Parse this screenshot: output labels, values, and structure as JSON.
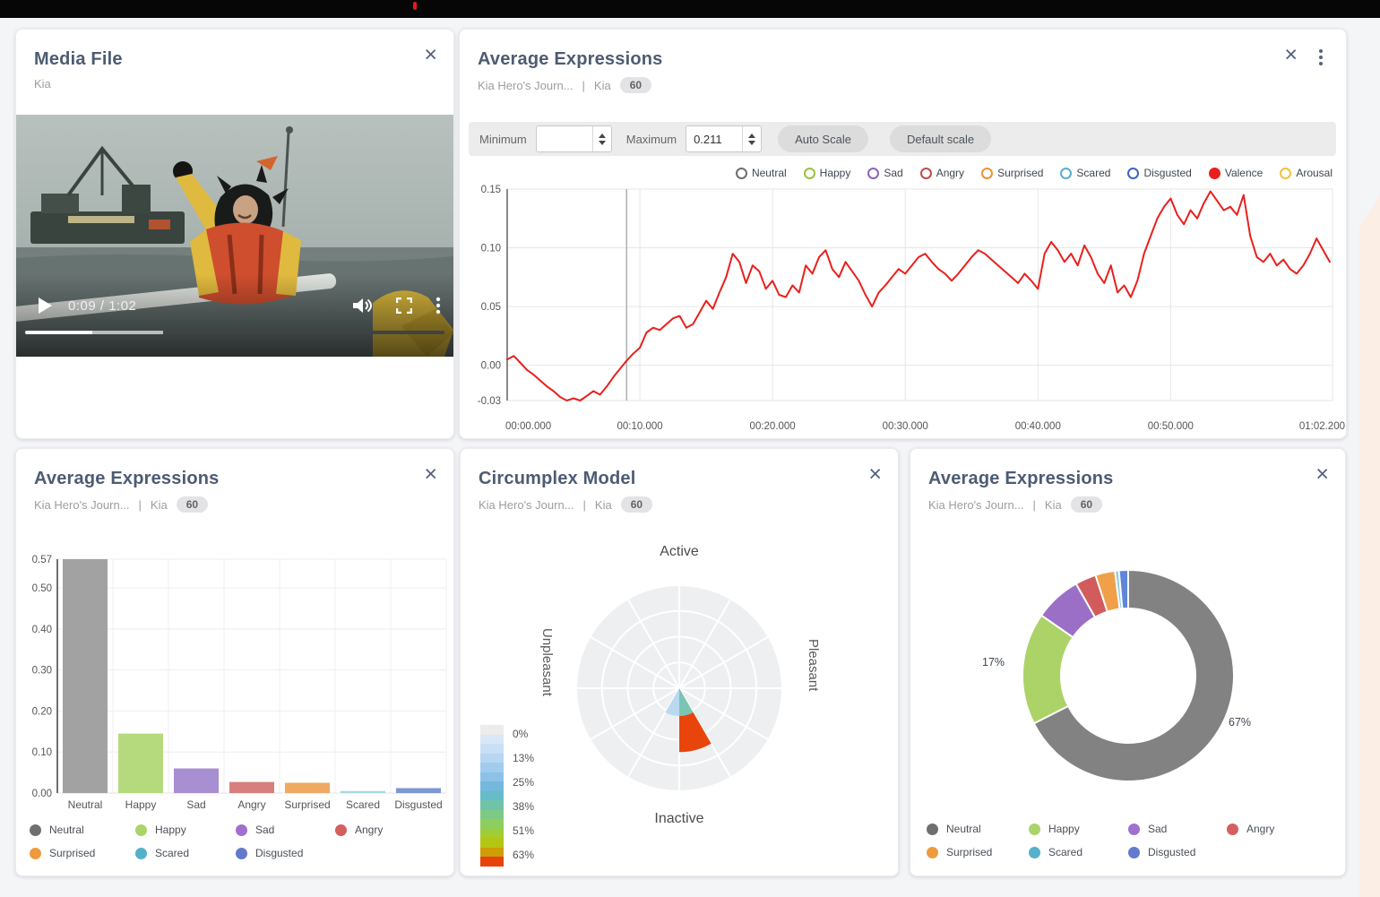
{
  "media_panel": {
    "title": "Media File",
    "subtitle": "Kia",
    "close_icon": "×",
    "player": {
      "time": "0:09 / 1:02",
      "progress_pct": 16,
      "buffer_pct": 33,
      "progress_color": "#ffffff",
      "buffer_color": "#b9bdbc",
      "track_color": "#3f4443"
    }
  },
  "line_panel": {
    "title": "Average Expressions",
    "source": "Kia Hero's Journ...",
    "separator": "|",
    "dataset": "Kia",
    "badge": "60",
    "close_icon": "×",
    "controls": {
      "min_label": "Minimum",
      "min_value": "",
      "max_label": "Maximum",
      "max_value": "0.211",
      "auto_btn": "Auto Scale",
      "default_btn": "Default scale"
    }
  },
  "bar_panel": {
    "title": "Average Expressions",
    "source": "Kia Hero's Journ...",
    "separator": "|",
    "dataset": "Kia",
    "badge": "60",
    "close_icon": "×"
  },
  "circumplex_panel": {
    "title": "Circumplex Model",
    "source": "Kia Hero's Journ...",
    "separator": "|",
    "dataset": "Kia",
    "badge": "60",
    "close_icon": "×"
  },
  "donut_panel": {
    "title": "Average Expressions",
    "source": "Kia Hero's Journ...",
    "separator": "|",
    "dataset": "Kia",
    "badge": "60",
    "close_icon": "×"
  },
  "chart_data": [
    {
      "id": "valence-line",
      "type": "line",
      "title": "Average Expressions",
      "legend": [
        {
          "label": "Neutral",
          "color": "#6e6e6e",
          "filled": false
        },
        {
          "label": "Happy",
          "color": "#97c23c",
          "filled": false
        },
        {
          "label": "Sad",
          "color": "#8d64c0",
          "filled": false
        },
        {
          "label": "Angry",
          "color": "#c4494e",
          "filled": false
        },
        {
          "label": "Surprised",
          "color": "#e8933a",
          "filled": false
        },
        {
          "label": "Scared",
          "color": "#5aaed0",
          "filled": false
        },
        {
          "label": "Disgusted",
          "color": "#3f62c4",
          "filled": false
        },
        {
          "label": "Valence",
          "color": "#e8201d",
          "filled": true
        },
        {
          "label": "Arousal",
          "color": "#f0c23c",
          "filled": false
        }
      ],
      "ylim": [
        -0.03,
        0.15
      ],
      "yticks": [
        {
          "v": 0.15,
          "label": "0.15"
        },
        {
          "v": 0.1,
          "label": "0.10"
        },
        {
          "v": 0.05,
          "label": "0.05"
        },
        {
          "v": 0.0,
          "label": "0.00"
        },
        {
          "v": -0.03,
          "label": "-0.03"
        }
      ],
      "xticks": [
        {
          "t": 0,
          "label": "00:00.000"
        },
        {
          "t": 10,
          "label": "00:10.000"
        },
        {
          "t": 20,
          "label": "00:20.000"
        },
        {
          "t": 30,
          "label": "00:30.000"
        },
        {
          "t": 40,
          "label": "00:40.000"
        },
        {
          "t": 50,
          "label": "00:50.000"
        },
        {
          "t": 62.2,
          "label": "01:02.200"
        }
      ],
      "duration_seconds": 62.2,
      "playhead_seconds": 9,
      "grid": true,
      "series": [
        {
          "name": "Valence",
          "color": "#e8201d",
          "t_step": 0.5,
          "values": [
            0.005,
            0.008,
            0.002,
            -0.004,
            -0.008,
            -0.013,
            -0.018,
            -0.022,
            -0.027,
            -0.03,
            -0.028,
            -0.03,
            -0.026,
            -0.022,
            -0.025,
            -0.018,
            -0.01,
            -0.003,
            0.004,
            0.01,
            0.015,
            0.028,
            0.032,
            0.03,
            0.035,
            0.04,
            0.042,
            0.032,
            0.035,
            0.045,
            0.055,
            0.048,
            0.062,
            0.075,
            0.095,
            0.088,
            0.07,
            0.085,
            0.08,
            0.065,
            0.072,
            0.06,
            0.058,
            0.068,
            0.062,
            0.085,
            0.078,
            0.092,
            0.098,
            0.082,
            0.075,
            0.088,
            0.08,
            0.072,
            0.06,
            0.05,
            0.062,
            0.068,
            0.075,
            0.082,
            0.078,
            0.085,
            0.092,
            0.095,
            0.088,
            0.082,
            0.078,
            0.072,
            0.078,
            0.085,
            0.092,
            0.098,
            0.095,
            0.09,
            0.085,
            0.08,
            0.075,
            0.07,
            0.078,
            0.072,
            0.065,
            0.095,
            0.105,
            0.098,
            0.088,
            0.095,
            0.085,
            0.102,
            0.092,
            0.078,
            0.07,
            0.085,
            0.062,
            0.068,
            0.058,
            0.072,
            0.095,
            0.11,
            0.125,
            0.135,
            0.142,
            0.128,
            0.12,
            0.132,
            0.125,
            0.138,
            0.148,
            0.14,
            0.132,
            0.135,
            0.128,
            0.145,
            0.11,
            0.092,
            0.088,
            0.095,
            0.085,
            0.09,
            0.082,
            0.078,
            0.085,
            0.095,
            0.108,
            0.098,
            0.088
          ]
        }
      ]
    },
    {
      "id": "avg-bar",
      "type": "bar",
      "title": "Average Expressions",
      "categories": [
        "Neutral",
        "Happy",
        "Sad",
        "Angry",
        "Surprised",
        "Scared",
        "Disgusted"
      ],
      "values": [
        0.57,
        0.145,
        0.06,
        0.027,
        0.025,
        0.005,
        0.012
      ],
      "bar_colors": [
        "#a2a2a2",
        "#b5d97d",
        "#a78fd1",
        "#d77e7e",
        "#f0a963",
        "#a6d9e8",
        "#7e97d3"
      ],
      "legend_colors": [
        "#6f6f6f",
        "#a9d46a",
        "#a070cc",
        "#d45f5f",
        "#f09a3e",
        "#55b0ca",
        "#6379cc"
      ],
      "ylim": [
        0,
        0.57
      ],
      "yticks": [
        {
          "v": 0.57,
          "label": "0.57"
        },
        {
          "v": 0.5,
          "label": "0.50"
        },
        {
          "v": 0.4,
          "label": "0.40"
        },
        {
          "v": 0.3,
          "label": "0.30"
        },
        {
          "v": 0.2,
          "label": "0.20"
        },
        {
          "v": 0.1,
          "label": "0.10"
        },
        {
          "v": 0.0,
          "label": "0.00"
        }
      ],
      "grid": true
    },
    {
      "id": "circumplex",
      "type": "polar",
      "title": "Circumplex Model",
      "axis_labels": {
        "top": "Active",
        "right": "Pleasant",
        "bottom": "Inactive",
        "left": "Unpleasant"
      },
      "sectors": 12,
      "rings": 4,
      "bg_color": "#edeff1",
      "wedges": [
        {
          "start_deg": 180,
          "end_deg": 210,
          "inner_frac": 0,
          "outer_frac": 0.27,
          "color": "#b9d9f1"
        },
        {
          "start_deg": 150,
          "end_deg": 180,
          "inner_frac": 0,
          "outer_frac": 0.27,
          "color": "#79c6b2"
        },
        {
          "start_deg": 150,
          "end_deg": 180,
          "inner_frac": 0.27,
          "outer_frac": 0.62,
          "color": "#e8450c"
        }
      ],
      "scale_labels": [
        "0%",
        "13%",
        "25%",
        "38%",
        "51%",
        "63%"
      ],
      "scale_colors": [
        "#ececec",
        "#d9e8f6",
        "#c9dff5",
        "#b7d6f2",
        "#a2ccee",
        "#8cc2e8",
        "#74b9dd",
        "#66bdc8",
        "#6fc4a8",
        "#7eca85",
        "#8ece5e",
        "#a0cd35",
        "#b5c513",
        "#cf9d04",
        "#e8430c"
      ]
    },
    {
      "id": "avg-donut",
      "type": "donut",
      "title": "Average Expressions",
      "slices": [
        {
          "label": "Neutral",
          "value": 67.4,
          "color": "#828282"
        },
        {
          "label": "Happy",
          "value": 17.1,
          "color": "#abd368"
        },
        {
          "label": "Sad",
          "value": 7.1,
          "color": "#9c6fc6"
        },
        {
          "label": "Angry",
          "value": 3.2,
          "color": "#d25c5c"
        },
        {
          "label": "Surprised",
          "value": 3.0,
          "color": "#f0a04a"
        },
        {
          "label": "Scared",
          "value": 0.6,
          "color": "#86cde4"
        },
        {
          "label": "Disgusted",
          "value": 1.4,
          "color": "#5f86d8"
        }
      ],
      "legend_colors": [
        "#6f6f6f",
        "#a9d46a",
        "#a070cc",
        "#d45f5f",
        "#f09a3e",
        "#55b0ca",
        "#6379cc"
      ],
      "callouts": {
        "left": "17%",
        "right": "67%"
      }
    }
  ]
}
